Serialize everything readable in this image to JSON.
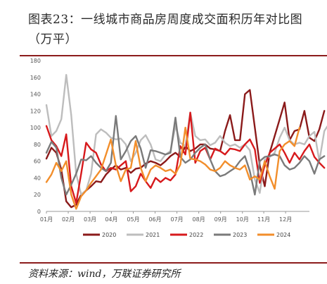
{
  "title": "图表23：一线城市商品房周度成交面积历年对比图（万平）",
  "source": "资料来源：wind，万联证券研究所",
  "chart_data": {
    "type": "line",
    "title": "图表23：一线城市商品房周度成交面积历年对比图（万平）",
    "xlabel": "",
    "ylabel": "",
    "ylim": [
      0,
      180
    ],
    "yticks": [
      0,
      20,
      40,
      60,
      80,
      100,
      120,
      140,
      160,
      180
    ],
    "xlim": [
      0,
      53
    ],
    "month_labels": [
      "01月",
      "02月",
      "03月",
      "04月",
      "05月",
      "06月",
      "07月",
      "08月",
      "09月",
      "10月",
      "11月",
      "12月"
    ],
    "month_positions": [
      0,
      4.4,
      8.8,
      13.1,
      17.5,
      21.9,
      26.3,
      30.7,
      35.1,
      39.5,
      43.8,
      48.2
    ],
    "grid": false,
    "legend_position": "bottom",
    "series": [
      {
        "name": "2020",
        "color": "#8b1a1a",
        "values": [
          63,
          76,
          70,
          50,
          12,
          5,
          8,
          20,
          25,
          30,
          36,
          35,
          44,
          50,
          55,
          50,
          52,
          46,
          51,
          52,
          57,
          60,
          58,
          55,
          60,
          66,
          70,
          65,
          78,
          72,
          75,
          80,
          80,
          75,
          74,
          72,
          96,
          115,
          85,
          85,
          140,
          145,
          100,
          55,
          30,
          70,
          90,
          110,
          130,
          85,
          96,
          98,
          120,
          88,
          84,
          98,
          120
        ]
      },
      {
        "name": "2021",
        "color": "#bdbdbd",
        "values": [
          127,
          90,
          96,
          110,
          163,
          115,
          45,
          20,
          25,
          45,
          92,
          98,
          94,
          88,
          86,
          87,
          80,
          60,
          70,
          85,
          91,
          80,
          62,
          60,
          68,
          72,
          102,
          82,
          78,
          118,
          90,
          85,
          86,
          79,
          82,
          90,
          82,
          78,
          80,
          76,
          80,
          73,
          38,
          22,
          62,
          65,
          70,
          88,
          100,
          85,
          80,
          82,
          80,
          90,
          95,
          60,
          96,
          105
        ]
      },
      {
        "name": "2022",
        "color": "#d7191c",
        "values": [
          102,
          85,
          78,
          66,
          92,
          30,
          10,
          45,
          82,
          74,
          70,
          56,
          48,
          52,
          50,
          55,
          60,
          24,
          30,
          45,
          36,
          28,
          40,
          35,
          40,
          37,
          44,
          78,
          68,
          118,
          58,
          72,
          76,
          62,
          75,
          72,
          68,
          75,
          74,
          72,
          80,
          86,
          74,
          34,
          55,
          70,
          75,
          80,
          70,
          58,
          70,
          62,
          72,
          80,
          65,
          58,
          52
        ]
      },
      {
        "name": "2023",
        "color": "#7a7a7a",
        "values": [
          70,
          83,
          76,
          40,
          20,
          32,
          45,
          62,
          61,
          66,
          58,
          52,
          48,
          58,
          114,
          62,
          72,
          84,
          90,
          75,
          52,
          73,
          72,
          70,
          68,
          70,
          112,
          65,
          58,
          62,
          70,
          76,
          80,
          62,
          48,
          42,
          44,
          48,
          52,
          60,
          66,
          48,
          20,
          60,
          65,
          66,
          68,
          66,
          55,
          50,
          52,
          58,
          66,
          60,
          45,
          62,
          66
        ]
      },
      {
        "name": "2024",
        "color": "#f28e2b",
        "values": [
          35,
          44,
          58,
          48,
          60,
          20,
          3,
          18,
          25,
          34,
          42,
          50,
          68,
          86,
          55,
          36,
          50,
          52,
          84,
          52,
          36,
          50,
          55,
          52,
          48,
          50,
          45,
          56,
          100,
          63,
          62,
          60,
          56,
          50,
          48,
          52,
          60,
          55,
          52,
          50,
          55,
          38,
          42,
          38,
          60,
          42,
          27,
          72,
          80,
          84,
          78,
          100
        ]
      }
    ]
  }
}
